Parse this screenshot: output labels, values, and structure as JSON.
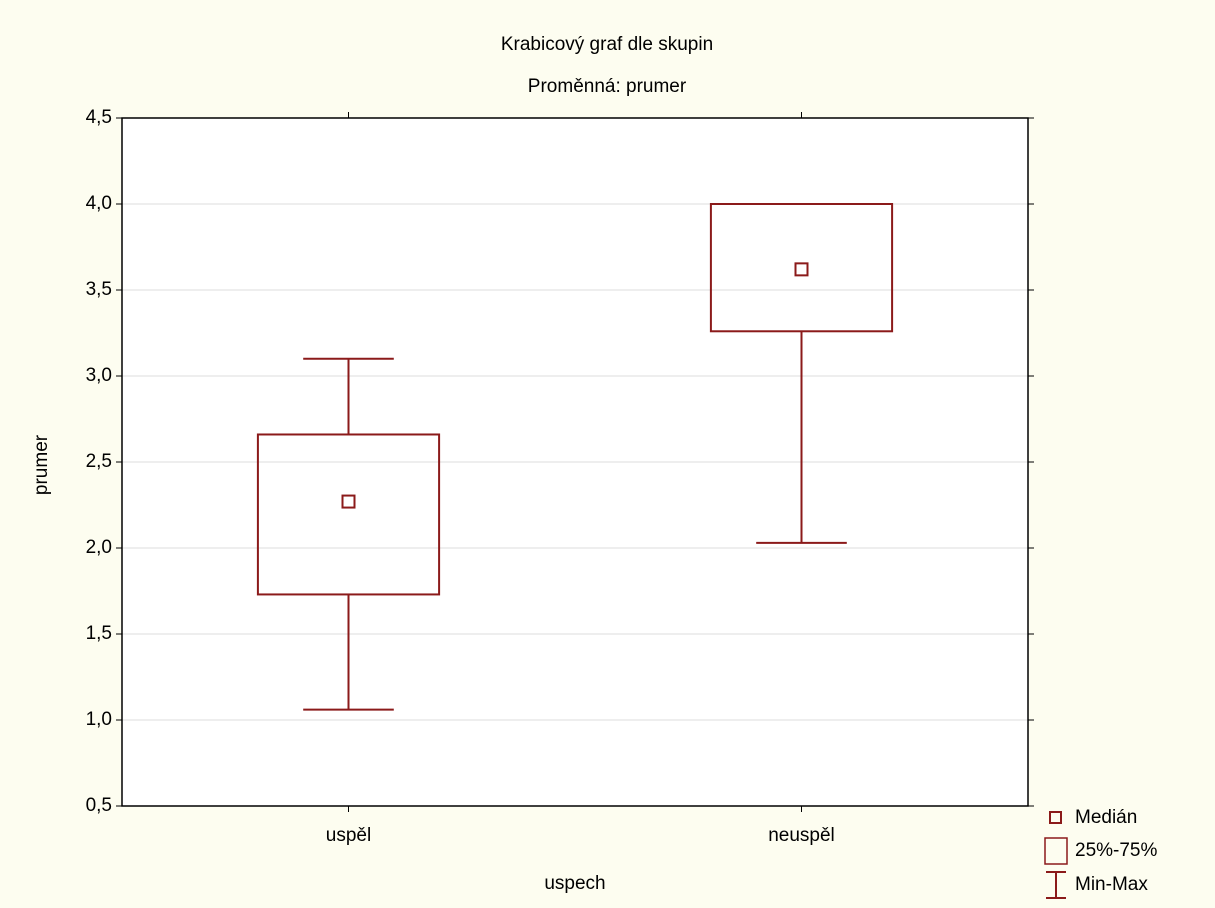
{
  "chart_data": {
    "type": "box",
    "title": "Krabicový graf dle skupin",
    "subtitle": "Proměnná: prumer",
    "x_label": "uspech",
    "y_label": "prumer",
    "categories": [
      "uspěl",
      "neuspěl"
    ],
    "min": [
      1.06,
      2.03
    ],
    "q1": [
      1.73,
      3.26
    ],
    "median": [
      2.27,
      3.62
    ],
    "q3": [
      2.66,
      4.0
    ],
    "max": [
      3.1,
      4.0
    ],
    "color": "#8b1a1a",
    "ylim": [
      0.5,
      4.5
    ],
    "yticks": [
      {
        "value": 0.5,
        "label": "0,5"
      },
      {
        "value": 1.0,
        "label": "1,0"
      },
      {
        "value": 1.5,
        "label": "1,5"
      },
      {
        "value": 2.0,
        "label": "2,0"
      },
      {
        "value": 2.5,
        "label": "2,5"
      },
      {
        "value": 3.0,
        "label": "3,0"
      },
      {
        "value": 3.5,
        "label": "3,5"
      },
      {
        "value": 4.0,
        "label": "4,0"
      },
      {
        "value": 4.5,
        "label": "4,5"
      }
    ],
    "grid": true,
    "legend": {
      "median": "Medián",
      "box": "25%-75%",
      "whisker": "Min-Max"
    }
  }
}
